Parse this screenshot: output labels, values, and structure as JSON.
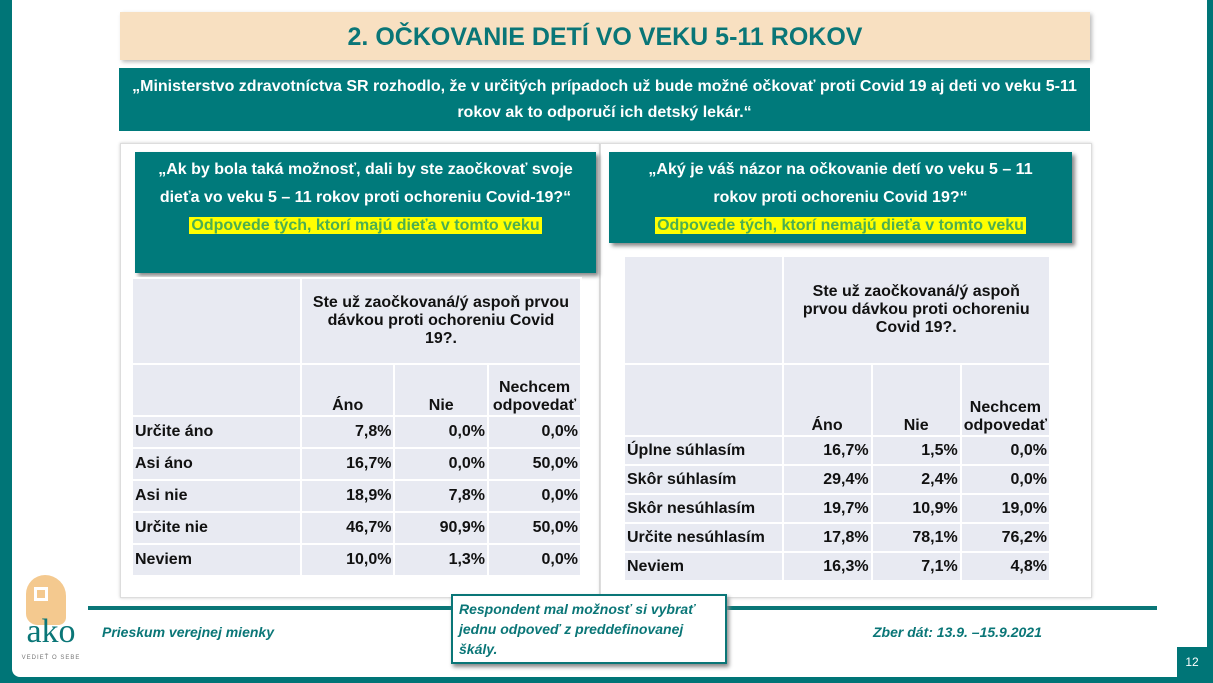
{
  "title": "2. OČKOVANIE DETÍ VO VEKU 5-11 ROKOV",
  "quote": "„Ministerstvo zdravotníctva SR rozhodlo, že v určitých prípadoch už bude možné očkovať proti Covid 19 aj deti vo veku 5-11 rokov ak to odporučí ich detský lekár.“",
  "left": {
    "question": "„Ak by bola taká možnosť, dali by ste zaočkovať svoje dieťa vo veku 5 – 11 rokov proti ochoreniu Covid-19?“",
    "subgroup": "Odpovede tých, ktorí majú dieťa v tomto veku",
    "table": {
      "header": "Ste už zaočkovaná/ý aspoň prvou dávkou proti ochoreniu Covid 19?.",
      "columns": [
        "Áno",
        "Nie",
        "Nechcem odpovedať"
      ],
      "rows": [
        {
          "label": "Určite áno",
          "values": [
            "7,8%",
            "0,0%",
            "0,0%"
          ]
        },
        {
          "label": "Asi áno",
          "values": [
            "16,7%",
            "0,0%",
            "50,0%"
          ]
        },
        {
          "label": "Asi nie",
          "values": [
            "18,9%",
            "7,8%",
            "0,0%"
          ]
        },
        {
          "label": "Určite nie",
          "values": [
            "46,7%",
            "90,9%",
            "50,0%"
          ]
        },
        {
          "label": "Neviem",
          "values": [
            "10,0%",
            "1,3%",
            "0,0%"
          ]
        }
      ]
    }
  },
  "right": {
    "question": "„Aký je váš názor na očkovanie detí vo veku 5 – 11 rokov proti ochoreniu Covid 19?“",
    "subgroup": "Odpovede tých, ktorí nemajú dieťa v tomto veku",
    "table": {
      "header": "Ste už zaočkovaná/ý aspoň prvou dávkou proti ochoreniu Covid 19?.",
      "columns": [
        "Áno",
        "Nie",
        "Nechcem odpovedať"
      ],
      "rows": [
        {
          "label": "Úplne súhlasím",
          "values": [
            "16,7%",
            "1,5%",
            "0,0%"
          ]
        },
        {
          "label": "Skôr súhlasím",
          "values": [
            "29,4%",
            "2,4%",
            "0,0%"
          ]
        },
        {
          "label": "Skôr nesúhlasím",
          "values": [
            "19,7%",
            "10,9%",
            "19,0%"
          ]
        },
        {
          "label": "Určite nesúhlasím",
          "values": [
            "17,8%",
            "78,1%",
            "76,2%"
          ]
        },
        {
          "label": "Neviem",
          "values": [
            "16,3%",
            "7,1%",
            "4,8%"
          ]
        }
      ]
    }
  },
  "footer": {
    "survey": "Prieskum verejnej mienky",
    "date": "Zber dát: 13.9. –15.9.2021",
    "note": "Respondent mal možnosť si vybrať jednu odpoveď z preddefinovanej škály.",
    "page": "12"
  },
  "logo": {
    "text": "ako",
    "tagline": "VEDIEŤ O SEBE"
  },
  "colors": {
    "teal": "#007a7b",
    "peach": "#f8e0c1",
    "highlight": "#ffff00"
  }
}
